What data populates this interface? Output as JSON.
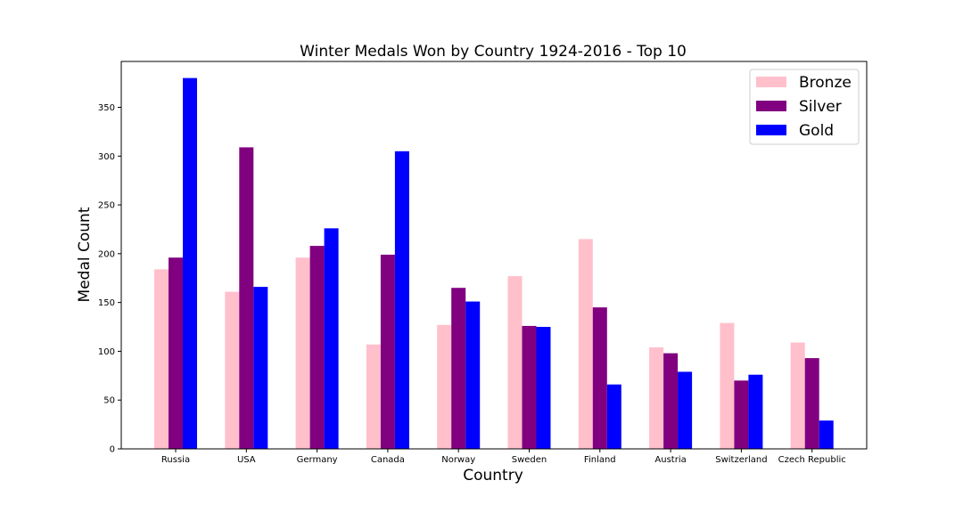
{
  "chart_data": {
    "type": "bar",
    "title": "Winter Medals Won by Country 1924-2016 - Top 10",
    "xlabel": "Country",
    "ylabel": "Medal Count",
    "ylim": [
      0,
      397
    ],
    "yticks": [
      0,
      50,
      100,
      150,
      200,
      250,
      300,
      350
    ],
    "grid": false,
    "legend_position": "top-right",
    "categories": [
      "Russia",
      "USA",
      "Germany",
      "Canada",
      "Norway",
      "Sweden",
      "Finland",
      "Austria",
      "Switzerland",
      "Czech Republic"
    ],
    "series": [
      {
        "name": "Bronze",
        "color": "#ffc0cb",
        "values": [
          184,
          161,
          196,
          107,
          127,
          177,
          215,
          104,
          129,
          109
        ]
      },
      {
        "name": "Silver",
        "color": "#800080",
        "values": [
          196,
          309,
          208,
          199,
          165,
          126,
          145,
          98,
          70,
          93
        ]
      },
      {
        "name": "Gold",
        "color": "#0000ff",
        "values": [
          380,
          166,
          226,
          305,
          151,
          125,
          66,
          79,
          76,
          29
        ]
      }
    ]
  }
}
